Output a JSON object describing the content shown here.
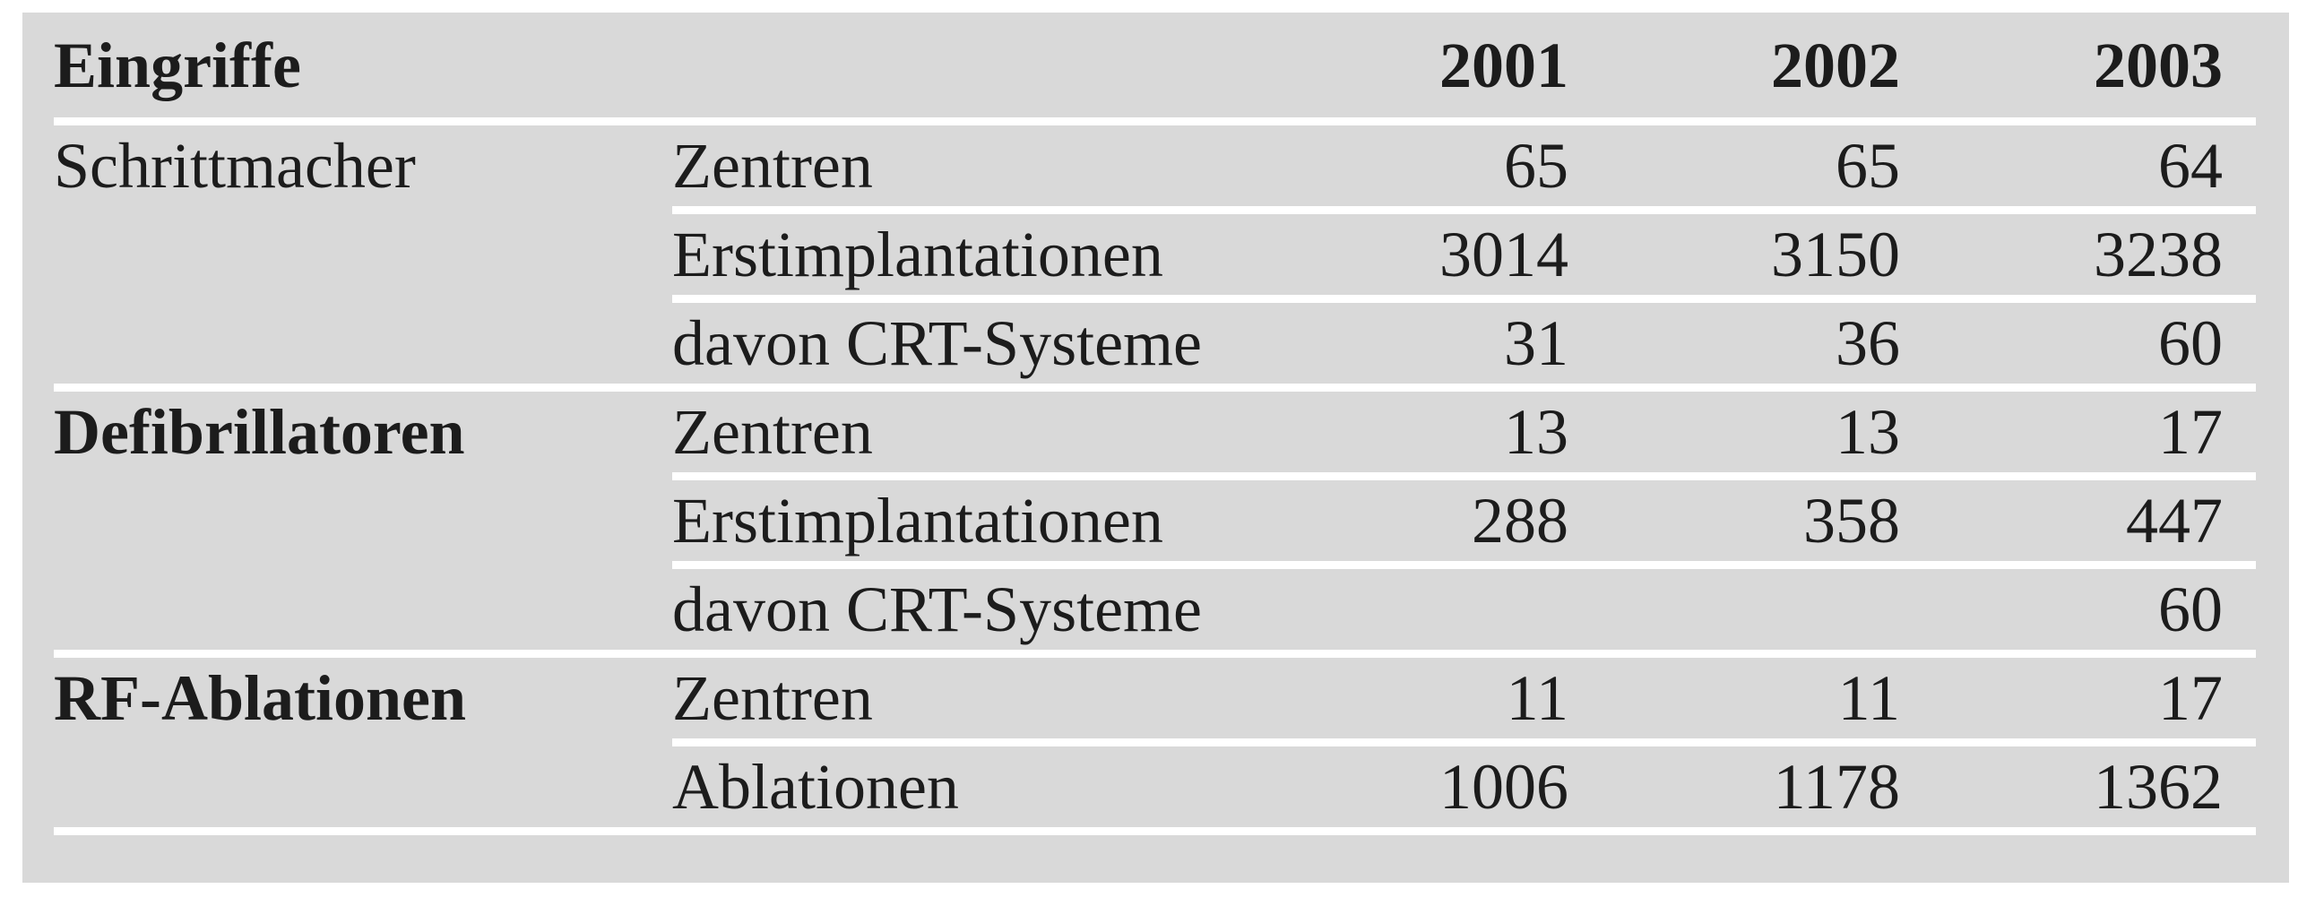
{
  "table": {
    "title_col_header": "Eingriffe",
    "year_headers": [
      "2001",
      "2002",
      "2003"
    ],
    "groups": [
      {
        "name": "Schrittmacher",
        "rows": [
          {
            "label": "Zentren",
            "values": [
              "65",
              "65",
              "64"
            ]
          },
          {
            "label": "Erstimplantationen",
            "values": [
              "3014",
              "3150",
              "3238"
            ]
          },
          {
            "label": "davon CRT-Systeme",
            "values": [
              "31",
              "36",
              "60"
            ]
          }
        ]
      },
      {
        "name": "Defibrillatoren",
        "rows": [
          {
            "label": "Zentren",
            "values": [
              "13",
              "13",
              "17"
            ]
          },
          {
            "label": "Erstimplantationen",
            "values": [
              "288",
              "358",
              "447"
            ]
          },
          {
            "label": "davon CRT-Systeme",
            "values": [
              "",
              "",
              "60"
            ]
          }
        ]
      },
      {
        "name": "RF-Ablationen",
        "rows": [
          {
            "label": "Zentren",
            "values": [
              "11",
              "11",
              "17"
            ]
          },
          {
            "label": "Ablationen",
            "values": [
              "1006",
              "1178",
              "1362"
            ]
          }
        ]
      }
    ],
    "colors": {
      "panel_background": "#d9d9d9",
      "text": "#1c1c1c",
      "rule": "#ffffff"
    }
  },
  "chart_data": {
    "type": "table",
    "title": "Eingriffe",
    "columns": [
      "Eingriffe",
      "",
      "2001",
      "2002",
      "2003"
    ],
    "rows": [
      [
        "Schrittmacher",
        "Zentren",
        "65",
        "65",
        "64"
      ],
      [
        "",
        "Erstimplantationen",
        "3014",
        "3150",
        "3238"
      ],
      [
        "",
        "davon CRT-Systeme",
        "31",
        "36",
        "60"
      ],
      [
        "Defibrillatoren",
        "Zentren",
        "13",
        "13",
        "17"
      ],
      [
        "",
        "Erstimplantationen",
        "288",
        "358",
        "447"
      ],
      [
        "",
        "davon CRT-Systeme",
        "",
        "",
        "60"
      ],
      [
        "RF-Ablationen",
        "Zentren",
        "11",
        "11",
        "17"
      ],
      [
        "",
        "Ablationen",
        "1006",
        "1178",
        "1362"
      ]
    ]
  }
}
